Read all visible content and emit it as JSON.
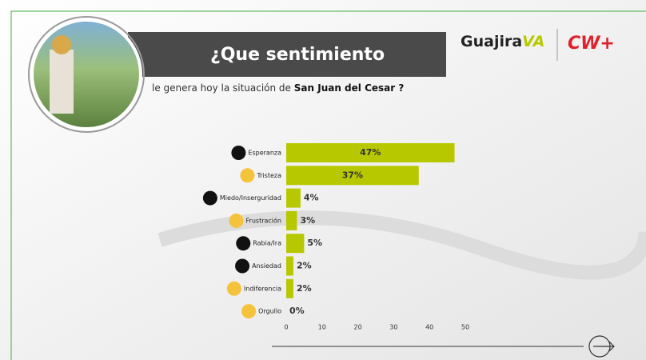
{
  "header": {
    "title": "¿Que sentimiento",
    "subtitle": "le genera hoy la situación de",
    "subtitle_emphasis": "San Juan del Cesar ?"
  },
  "logos": {
    "primary": "Guajira",
    "primary_mark": "VA",
    "secondary": "CW+"
  },
  "chart_data": {
    "type": "hbar",
    "categories": [
      "Esperanza",
      "Tristeza",
      "Miedo/Inserguridad",
      "Frustración",
      "Rabia/Ira",
      "Ansiedad",
      "Indiferencia",
      "Orgullo"
    ],
    "values": [
      47,
      37,
      4,
      3,
      5,
      2,
      2,
      0
    ],
    "value_labels": [
      "47%",
      "37%",
      "4%",
      "3%",
      "5%",
      "2%",
      "2%",
      "0%"
    ],
    "color": "#b7c800",
    "xlim": [
      0,
      50
    ],
    "xticks": [
      0,
      10,
      20,
      30,
      40,
      50
    ],
    "grid": false
  }
}
